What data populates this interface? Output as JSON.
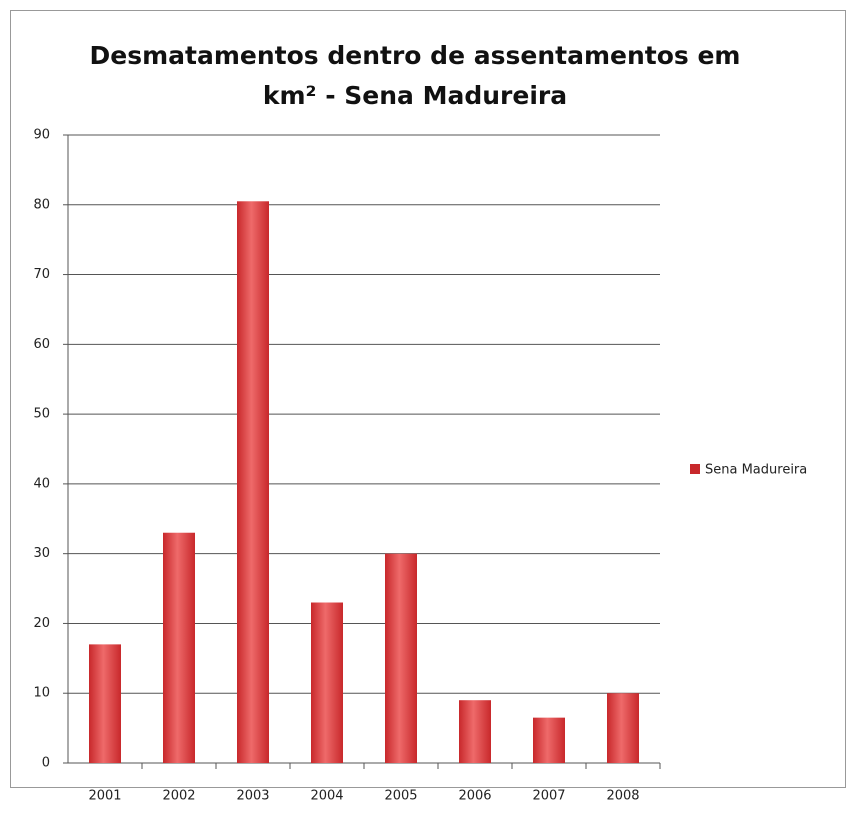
{
  "chart_data": {
    "type": "bar",
    "title": "Desmatamentos dentro de assentamentos em km² - Sena Madureira",
    "categories": [
      "2001",
      "2002",
      "2003",
      "2004",
      "2005",
      "2006",
      "2007",
      "2008"
    ],
    "series": [
      {
        "name": "Sena Madureira",
        "color": "#c8282b",
        "values": [
          17,
          33,
          80.5,
          23,
          30,
          9,
          6.5,
          10
        ]
      }
    ],
    "ylim": [
      0,
      90
    ],
    "yticks": [
      0,
      10,
      20,
      30,
      40,
      50,
      60,
      70,
      80,
      90
    ],
    "grid": true,
    "legend": "right"
  }
}
